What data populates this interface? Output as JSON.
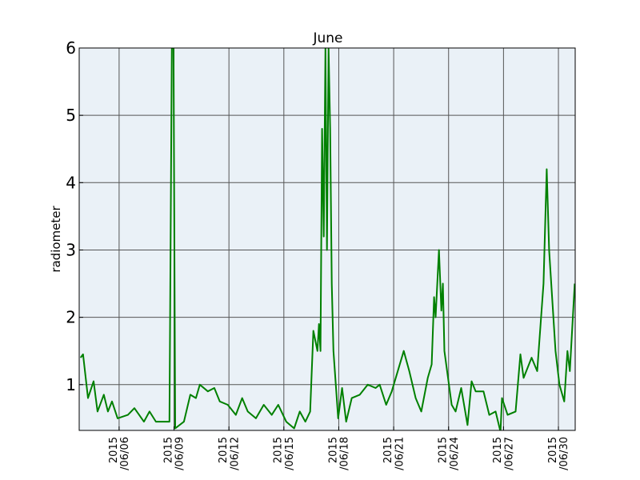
{
  "chart_data": {
    "type": "line",
    "title": "June",
    "y_label": "radiometer",
    "x": [
      "2015-06-03 21:30",
      "2015-06-04 00:45",
      "2015-06-04 07:10",
      "2015-06-04 14:30",
      "2015-06-04 19:40",
      "2015-06-05 04:00",
      "2015-06-05 09:20",
      "2015-06-05 14:40",
      "2015-06-05 22:00",
      "2015-06-06 11:30",
      "2015-06-06 20:00",
      "2015-06-07 08:30",
      "2015-06-07 15:50",
      "2015-06-08 00:15",
      "2015-06-08 18:00",
      "2015-06-08 21:10",
      "2015-06-08 23:20",
      "2015-06-09 01:30",
      "2015-06-09 13:00",
      "2015-06-09 21:20",
      "2015-06-10 04:40",
      "2015-06-10 09:50",
      "2015-06-10 20:20",
      "2015-06-11 04:50",
      "2015-06-11 12:00",
      "2015-06-11 22:30",
      "2015-06-12 09:00",
      "2015-06-12 17:20",
      "2015-06-13 00:40",
      "2015-06-13 11:20",
      "2015-06-13 21:40",
      "2015-06-14 08:10",
      "2015-06-14 16:40",
      "2015-06-15 03:10",
      "2015-06-15 13:30",
      "2015-06-15 20:50",
      "2015-06-16 04:10",
      "2015-06-16 10:30",
      "2015-06-16 14:40",
      "2015-06-16 20:00",
      "2015-06-16 22:00",
      "2015-06-17 00:00",
      "2015-06-17 02:10",
      "2015-06-17 04:20",
      "2015-06-17 06:30",
      "2015-06-17 08:30",
      "2015-06-17 10:40",
      "2015-06-17 12:40",
      "2015-06-17 14:50",
      "2015-06-17 17:00",
      "2015-06-17 23:10",
      "2015-06-18 04:20",
      "2015-06-18 09:40",
      "2015-06-18 17:00",
      "2015-06-19 03:30",
      "2015-06-19 14:00",
      "2015-06-20 00:20",
      "2015-06-20 05:40",
      "2015-06-20 14:10",
      "2015-06-20 21:30",
      "2015-06-21 13:10",
      "2015-06-21 20:30",
      "2015-06-22 04:50",
      "2015-06-22 12:10",
      "2015-06-22 20:40",
      "2015-06-23 01:50",
      "2015-06-23 05:00",
      "2015-06-23 07:00",
      "2015-06-23 11:20",
      "2015-06-23 14:30",
      "2015-06-23 16:30",
      "2015-06-23 18:30",
      "2015-06-24 04:00",
      "2015-06-24 09:10",
      "2015-06-24 16:30",
      "2015-06-25 00:50",
      "2015-06-25 06:10",
      "2015-06-25 11:30",
      "2015-06-25 21:50",
      "2015-06-26 05:20",
      "2015-06-26 13:40",
      "2015-06-26 20:00",
      "2015-06-26 22:00",
      "2015-06-27 05:20",
      "2015-06-27 15:50",
      "2015-06-27 22:10",
      "2015-06-28 02:20",
      "2015-06-28 12:50",
      "2015-06-28 20:10",
      "2015-06-29 04:30",
      "2015-06-29 08:40",
      "2015-06-29 11:50",
      "2015-06-29 20:10",
      "2015-06-30 01:20",
      "2015-06-30 07:40",
      "2015-06-30 11:50",
      "2015-06-30 15:00",
      "2015-06-30 21:20"
    ],
    "series": [
      {
        "color": "#008000",
        "values": [
          1.4,
          1.45,
          0.8,
          1.05,
          0.6,
          0.85,
          0.6,
          0.75,
          0.5,
          0.55,
          0.65,
          0.45,
          0.6,
          0.45,
          0.45,
          6,
          6,
          0.35,
          0.45,
          0.85,
          0.8,
          1.0,
          0.9,
          0.95,
          0.75,
          0.7,
          0.55,
          0.8,
          0.6,
          0.5,
          0.7,
          0.55,
          0.7,
          0.45,
          0.35,
          0.6,
          0.45,
          0.6,
          1.8,
          1.5,
          1.9,
          1.5,
          4.8,
          3.2,
          6,
          3,
          6,
          4.8,
          2.5,
          1.5,
          0.5,
          0.95,
          0.45,
          0.8,
          0.85,
          1.0,
          0.95,
          1.0,
          0.7,
          0.9,
          1.5,
          1.2,
          0.8,
          0.6,
          1.1,
          1.3,
          2.3,
          2.0,
          3.0,
          2.1,
          2.5,
          1.5,
          0.7,
          0.6,
          0.95,
          0.4,
          1.05,
          0.9,
          0.9,
          0.55,
          0.6,
          0.3,
          0.8,
          0.55,
          0.6,
          1.45,
          1.1,
          1.4,
          1.2,
          2.5,
          4.2,
          3.0,
          1.5,
          1.0,
          0.75,
          1.5,
          1.2,
          2.5
        ]
      }
    ],
    "xlim": [
      "2015-06-03 19:40",
      "2015-06-30 22:00"
    ],
    "xticks": [
      {
        "value": "2015-06-06 00:00",
        "label": "2015\n/06/06"
      },
      {
        "value": "2015-06-09 00:00",
        "label": "2015\n/06/09"
      },
      {
        "value": "2015-06-12 00:00",
        "label": "2015\n/06/12"
      },
      {
        "value": "2015-06-15 00:00",
        "label": "2015\n/06/15"
      },
      {
        "value": "2015-06-18 00:00",
        "label": "2015\n/06/18"
      },
      {
        "value": "2015-06-21 00:00",
        "label": "2015\n/06/21"
      },
      {
        "value": "2015-06-24 00:00",
        "label": "2015\n/06/24"
      },
      {
        "value": "2015-06-27 00:00",
        "label": "2015\n/06/27"
      },
      {
        "value": "2015-06-30 00:00",
        "label": "2015\n/06/30"
      }
    ],
    "ylim": [
      0.32,
      6
    ],
    "yticks": [
      1,
      2,
      3,
      4,
      5,
      6
    ],
    "grid": true
  }
}
